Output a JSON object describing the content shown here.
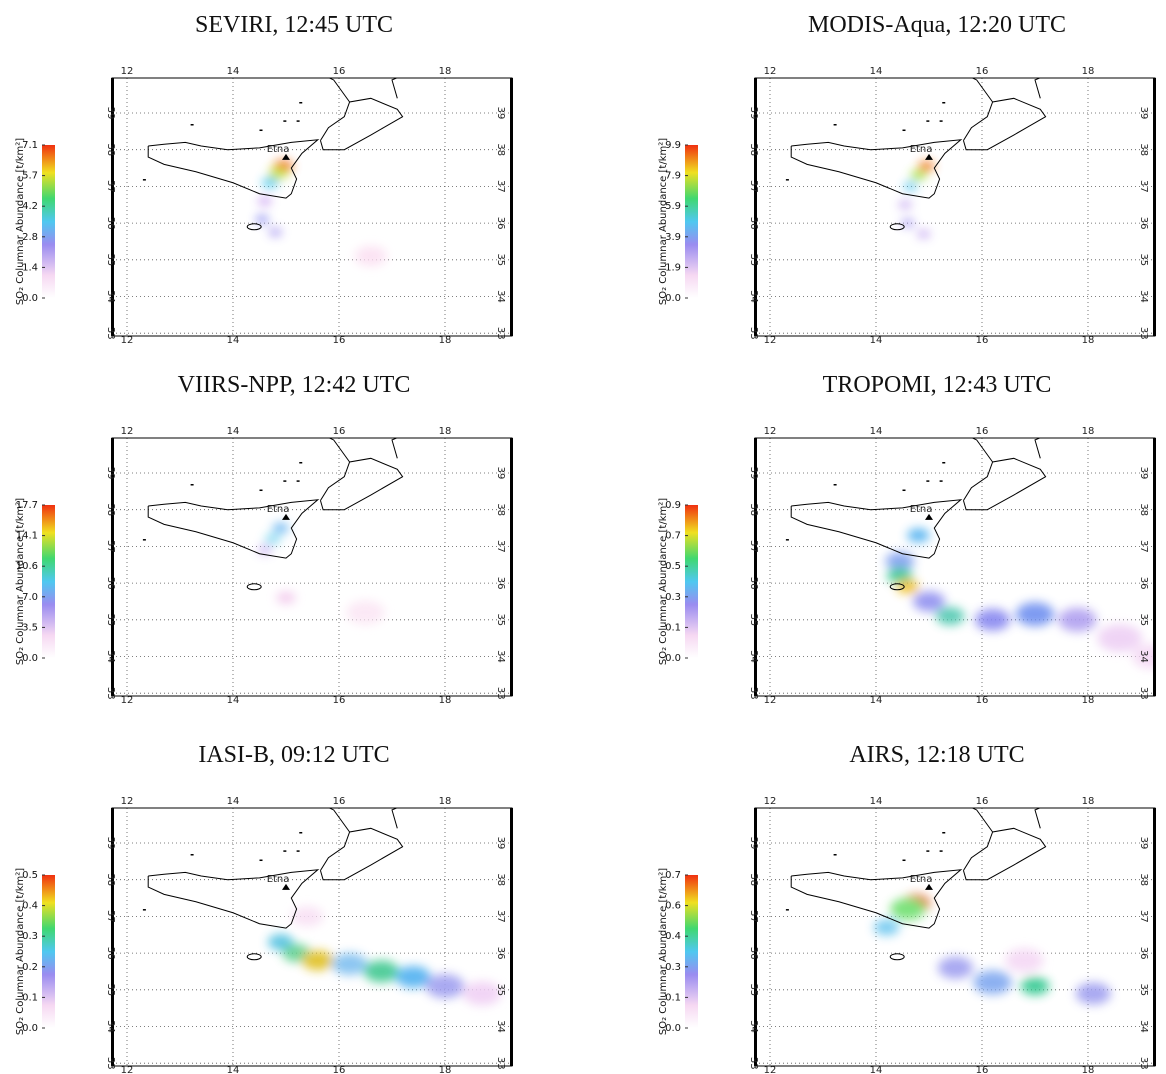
{
  "panels": [
    {
      "title": "SEVIRI, 12:45 UTC",
      "colorbar_label": "SO₂ Columnar Abundance [t/km²]",
      "colorbar_ticks": [
        "7.1",
        "5.7",
        "4.2",
        "2.8",
        "1.4",
        "0.0"
      ]
    },
    {
      "title": "MODIS-Aqua, 12:20 UTC",
      "colorbar_label": "SO₂ Columnar Abundance [t/km²]",
      "colorbar_ticks": [
        "9.9",
        "7.9",
        "5.9",
        "3.9",
        "1.9",
        "0.0"
      ]
    },
    {
      "title": "VIIRS-NPP, 12:42 UTC",
      "colorbar_label": "SO₂ Columnar Abundance [t/km²]",
      "colorbar_ticks": [
        "17.7",
        "14.1",
        "10.6",
        "7.0",
        "3.5",
        "0.0"
      ]
    },
    {
      "title": "TROPOMI, 12:43 UTC",
      "colorbar_label": "SO₂ Columnar Abundance [t/km²]",
      "colorbar_ticks": [
        "0.9",
        "0.7",
        "0.5",
        "0.3",
        "0.1",
        "0.0"
      ]
    },
    {
      "title": "IASI-B, 09:12 UTC",
      "colorbar_label": "SO₂ Columnar Abundance [t/km²]",
      "colorbar_ticks": [
        "0.5",
        "0.4",
        "0.3",
        "0.2",
        "0.1",
        "0.0"
      ]
    },
    {
      "title": "AIRS, 12:18 UTC",
      "colorbar_label": "SO₂ Columnar Abundance [t/km²]",
      "colorbar_ticks": [
        "0.7",
        "0.6",
        "0.4",
        "0.3",
        "0.1",
        "0.0"
      ]
    }
  ],
  "map": {
    "lon_ticks": [
      12,
      14,
      16,
      18
    ],
    "lat_ticks": [
      39,
      38,
      37,
      36,
      35,
      34,
      33
    ],
    "volcano_label": "Etna"
  }
}
